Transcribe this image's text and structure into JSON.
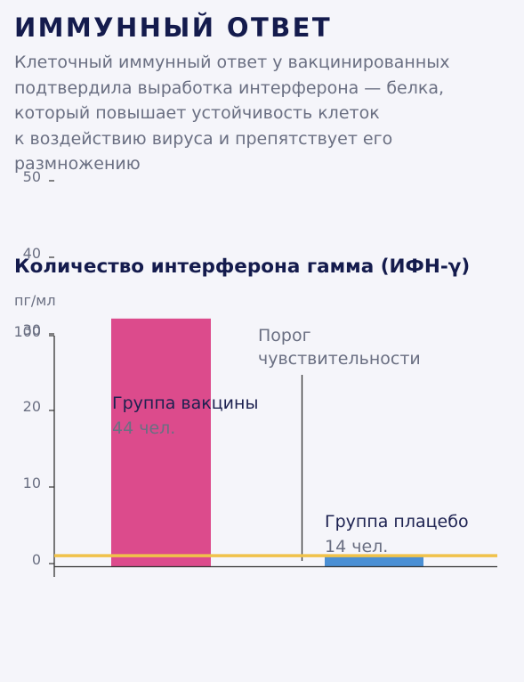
{
  "header": {
    "title": "ИММУННЫЙ ОТВЕТ",
    "lead_lines": [
      "Клеточный иммунный ответ у вакцинированных",
      "подтвердила выработка интерферона — белка,",
      "который повышает устойчивость клеток",
      "к воздействию вируса и препятствует его",
      "размножению"
    ]
  },
  "chart_data": {
    "type": "bar",
    "title": "Количество интерферона гамма (ИФН-γ)",
    "ylabel": "пг/мл",
    "y_ticks": [
      "100",
      "50",
      "40",
      "30",
      "20",
      "10",
      "0"
    ],
    "y_axis_note": "nonlinear axis: 0–50 in steps of 10, top tick 100",
    "categories": [
      "Группа вакцины",
      "Группа плацебо"
    ],
    "category_sublabels": [
      "44 чел.",
      "14 чел."
    ],
    "values": [
      32,
      1
    ],
    "threshold": {
      "label_lines": [
        "Порог",
        "чувствительности"
      ],
      "value": 1.5
    },
    "grid": false,
    "colors": {
      "vaccine_bar": "#dc4b8c",
      "placebo_bar": "#4a8fd4",
      "threshold_line": "#f0c24a",
      "axis": "#333333",
      "label_dark": "#1c2150",
      "label_muted": "#6a6f82"
    }
  }
}
